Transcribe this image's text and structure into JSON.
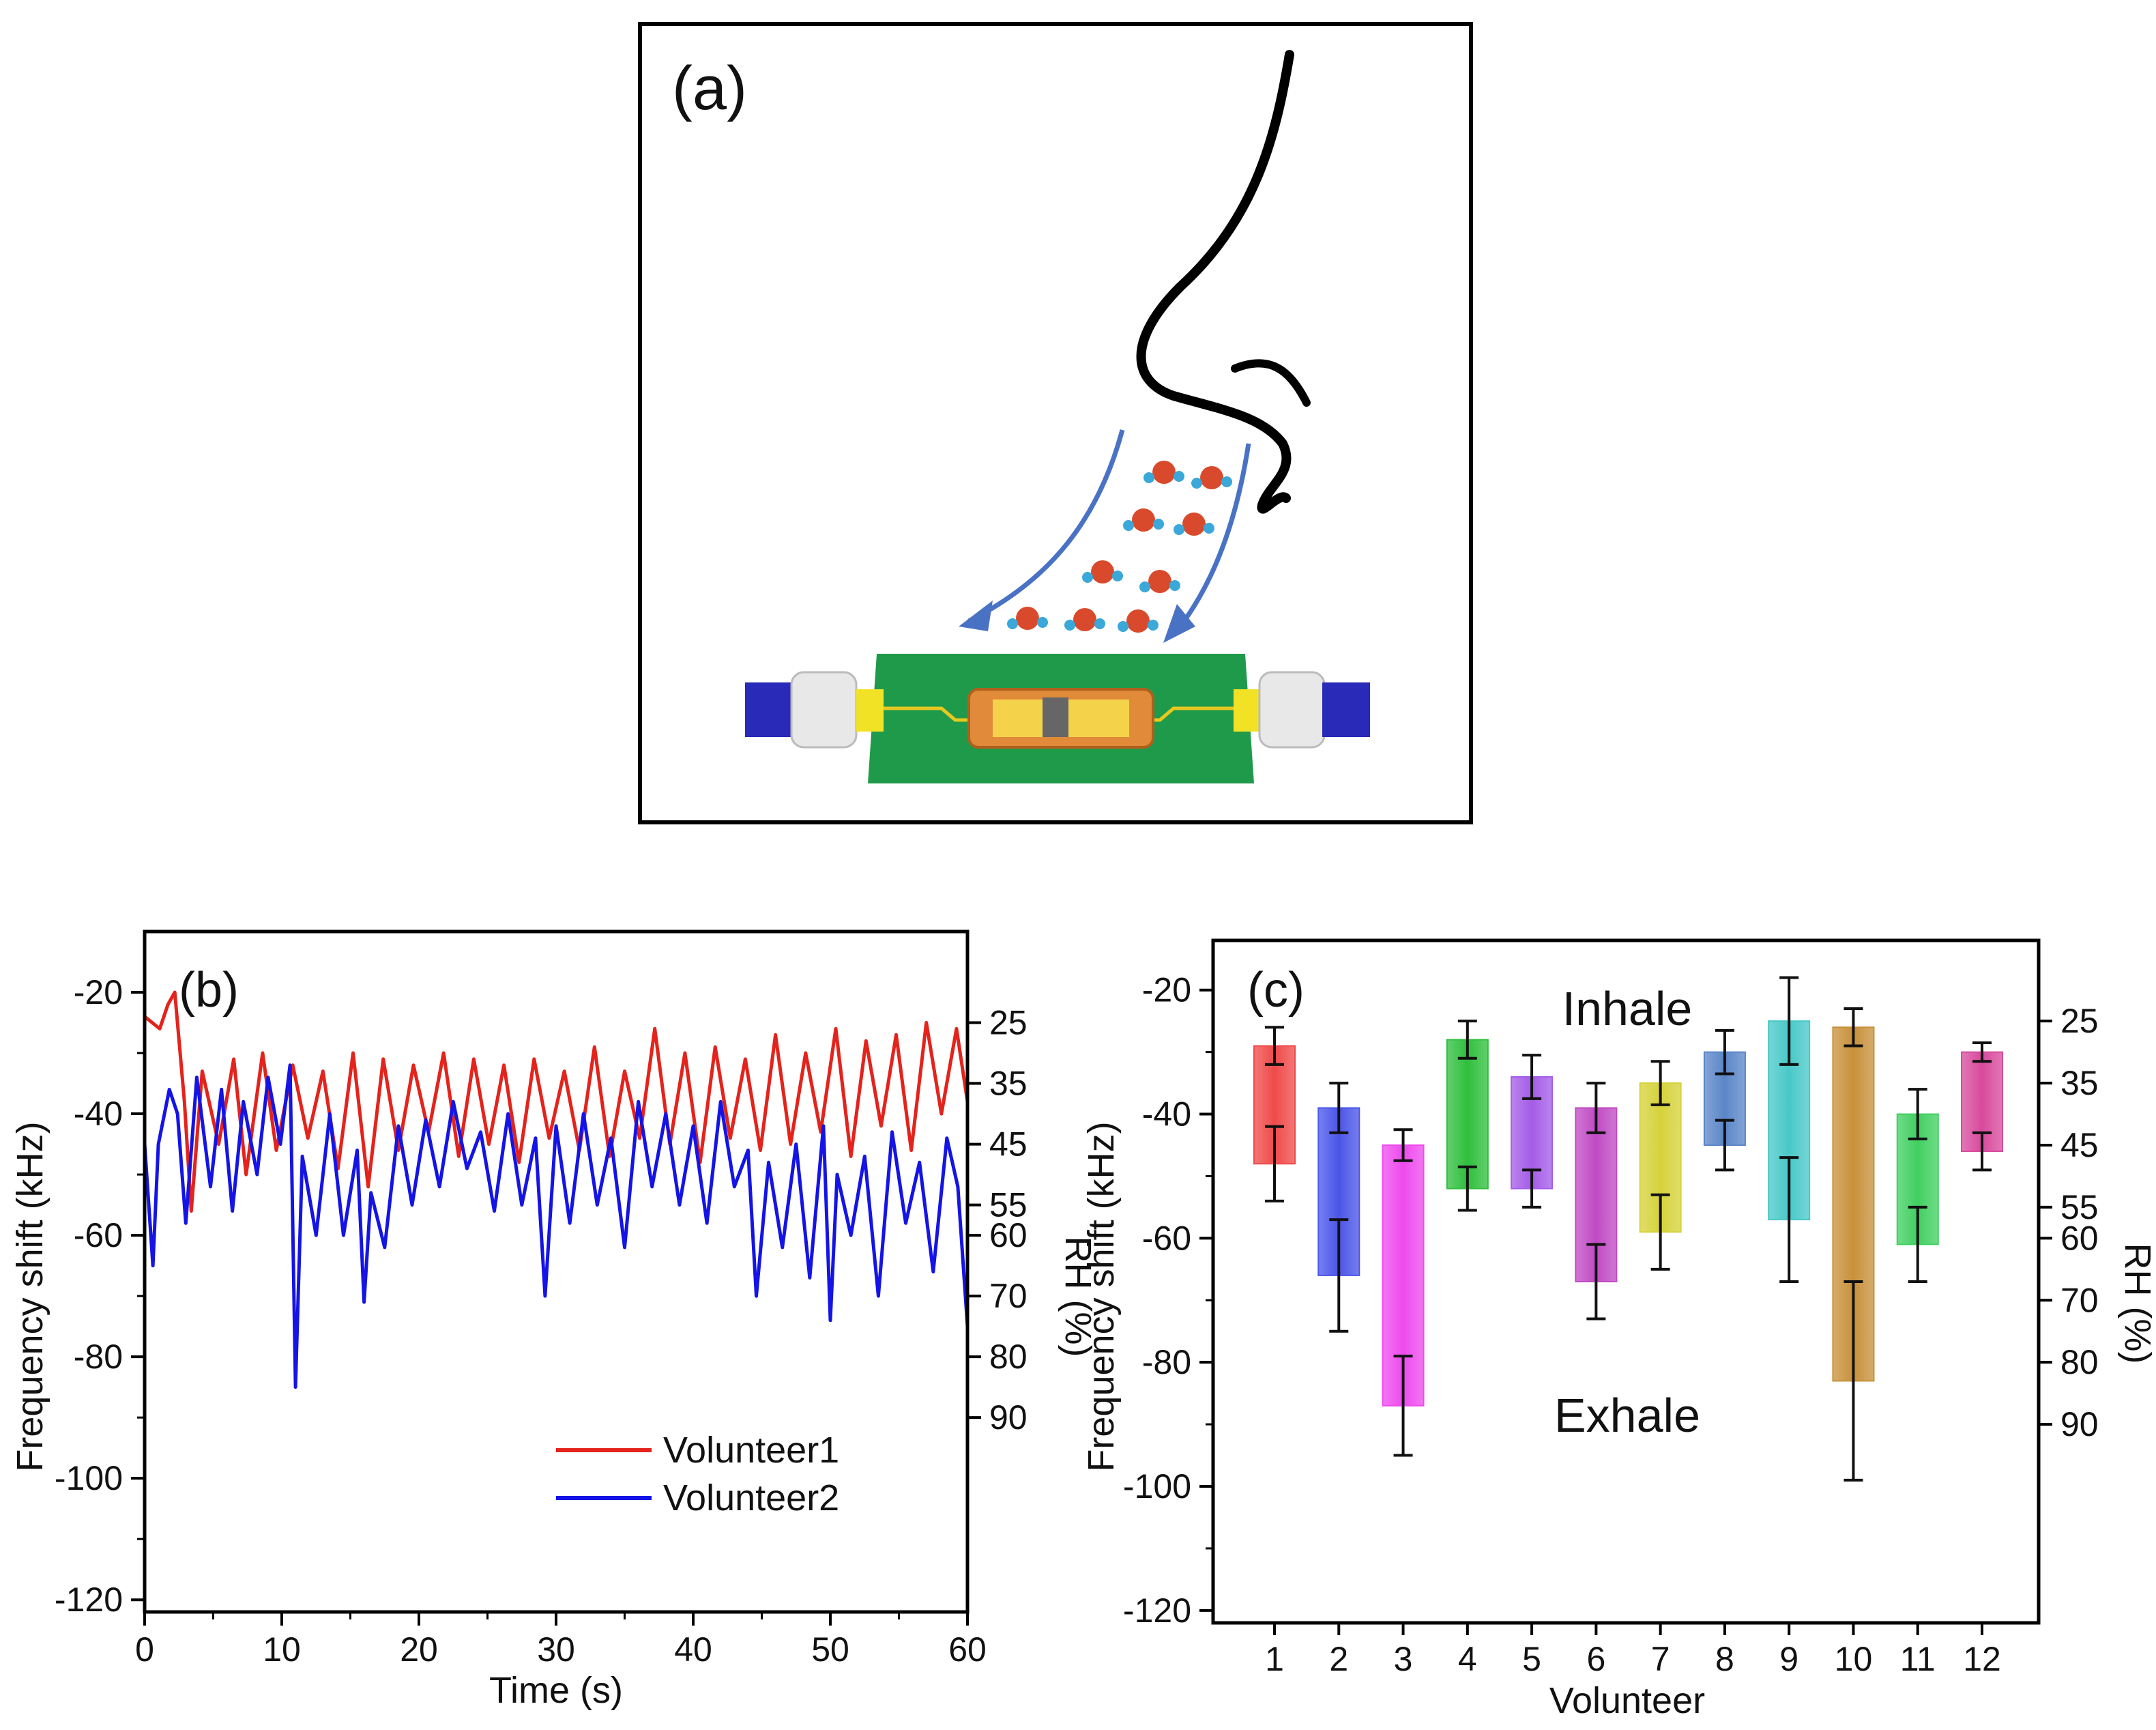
{
  "panel_a": {
    "label": "(a)"
  },
  "colors": {
    "red": "#e3231c",
    "blue": "#1414e6"
  },
  "chart_data": [
    {
      "panel": "(b)",
      "type": "line",
      "xlabel": "Time (s)",
      "ylabel": "Frequency shift (kHz)",
      "y2label": "RH (%)",
      "xlim": [
        0,
        60
      ],
      "ylim": [
        -122,
        -10
      ],
      "xticks": [
        "0",
        "10",
        "20",
        "30",
        "40",
        "50",
        "60"
      ],
      "yticks": [
        "-20",
        "-40",
        "-60",
        "-80",
        "-100",
        "-120"
      ],
      "y2ticks": [
        "25",
        "35",
        "45",
        "55",
        "60",
        "70",
        "80",
        "90"
      ],
      "y2_tick_positions_kHz": [
        -25,
        -35,
        -45,
        -55,
        -60,
        -70,
        -80,
        -90
      ],
      "legend": [
        "Volunteer1",
        "Volunteer2"
      ],
      "series": [
        {
          "name": "Volunteer1",
          "color": "#e3231c",
          "baseline_kHz": -23,
          "x": [
            0.0,
            1.1,
            1.7,
            2.2,
            2.9,
            3.4,
            4.2,
            5.4,
            6.5,
            7.4,
            8.6,
            9.6,
            10.8,
            11.9,
            13.0,
            14.1,
            15.2,
            16.3,
            17.4,
            18.5,
            19.6,
            20.7,
            21.8,
            22.9,
            24.0,
            25.1,
            26.2,
            27.3,
            28.4,
            29.5,
            30.6,
            31.7,
            32.8,
            33.9,
            35.0,
            36.1,
            37.2,
            38.3,
            39.4,
            40.5,
            41.6,
            42.7,
            43.8,
            44.9,
            46.0,
            47.1,
            48.2,
            49.3,
            50.4,
            51.5,
            52.6,
            53.7,
            54.8,
            55.9,
            57.0,
            58.1,
            59.2,
            60.0
          ],
          "y": [
            -24,
            -26,
            -22,
            -20,
            -38,
            -56,
            -33,
            -45,
            -31,
            -50,
            -30,
            -46,
            -32,
            -44,
            -33,
            -49,
            -30,
            -52,
            -31,
            -46,
            -32,
            -43,
            -30,
            -47,
            -31,
            -45,
            -32,
            -48,
            -31,
            -44,
            -33,
            -46,
            -29,
            -47,
            -33,
            -44,
            -26,
            -45,
            -30,
            -48,
            -29,
            -44,
            -31,
            -46,
            -27,
            -45,
            -30,
            -43,
            -26,
            -47,
            -28,
            -42,
            -27,
            -46,
            -25,
            -40,
            -26,
            -38
          ]
        },
        {
          "name": "Volunteer2",
          "color": "#1414e6",
          "x": [
            0.0,
            0.6,
            1.0,
            1.8,
            2.4,
            3.0,
            3.8,
            4.8,
            5.6,
            6.4,
            7.2,
            8.2,
            9.0,
            9.9,
            10.6,
            11.0,
            11.5,
            12.5,
            13.5,
            14.5,
            15.5,
            16.0,
            16.5,
            17.5,
            18.5,
            19.5,
            20.5,
            21.5,
            22.5,
            23.5,
            24.5,
            25.5,
            26.5,
            27.5,
            28.5,
            29.2,
            30.0,
            31.0,
            32.0,
            33.0,
            34.0,
            35.0,
            36.0,
            37.0,
            38.0,
            39.0,
            40.0,
            41.0,
            42.0,
            43.0,
            44.0,
            44.6,
            45.5,
            46.5,
            47.5,
            48.5,
            49.5,
            50.0,
            50.5,
            51.5,
            52.5,
            53.5,
            54.5,
            55.5,
            56.5,
            57.5,
            58.5,
            59.3,
            60.0
          ],
          "y": [
            -45,
            -65,
            -45,
            -36,
            -40,
            -58,
            -34,
            -52,
            -36,
            -56,
            -38,
            -50,
            -34,
            -45,
            -32,
            -85,
            -47,
            -60,
            -40,
            -60,
            -46,
            -71,
            -53,
            -62,
            -42,
            -55,
            -41,
            -52,
            -38,
            -49,
            -43,
            -56,
            -40,
            -55,
            -44,
            -70,
            -42,
            -58,
            -40,
            -55,
            -44,
            -62,
            -38,
            -52,
            -40,
            -55,
            -42,
            -58,
            -38,
            -52,
            -46,
            -70,
            -48,
            -62,
            -45,
            -67,
            -42,
            -74,
            -50,
            -60,
            -47,
            -70,
            -43,
            -58,
            -48,
            -66,
            -44,
            -52,
            -75
          ]
        }
      ]
    },
    {
      "panel": "(c)",
      "type": "bar",
      "xlabel": "Volunteer",
      "ylabel": "Frequency shift (kHz)",
      "y2label": "RH (%)",
      "ylim": [
        -122,
        -12
      ],
      "yticks": [
        "-20",
        "-40",
        "-60",
        "-80",
        "-100",
        "-120"
      ],
      "y2ticks": [
        "25",
        "35",
        "45",
        "55",
        "60",
        "70",
        "80",
        "90"
      ],
      "y2_tick_positions_kHz": [
        -25,
        -35,
        -45,
        -55,
        -60,
        -70,
        -80,
        -90
      ],
      "categories": [
        "1",
        "2",
        "3",
        "4",
        "5",
        "6",
        "7",
        "8",
        "9",
        "10",
        "11",
        "12"
      ],
      "inhale": [
        -29,
        -39,
        -45,
        -28,
        -34,
        -39,
        -35,
        -30,
        -25,
        -26,
        -40,
        -30
      ],
      "inhale_err": [
        3,
        4,
        2.5,
        3,
        3.5,
        4,
        3.5,
        3.5,
        7,
        3,
        4,
        1.5
      ],
      "exhale": [
        -48,
        -66,
        -87,
        -52,
        -52,
        -67,
        -59,
        -45,
        -57,
        -83,
        -61,
        -46
      ],
      "exhale_err": [
        6,
        9,
        8,
        3.5,
        3,
        6,
        6,
        4,
        10,
        16,
        6,
        3
      ],
      "bar_colors": [
        "#ef4a4a",
        "#4a55e8",
        "#ee4aee",
        "#2fbf3c",
        "#a45ce8",
        "#c04ac4",
        "#d6d23a",
        "#5a86c8",
        "#48c8c8",
        "#c8903a",
        "#40d060",
        "#d84a9c"
      ],
      "annotations": [
        "Inhale",
        "Exhale"
      ]
    }
  ]
}
